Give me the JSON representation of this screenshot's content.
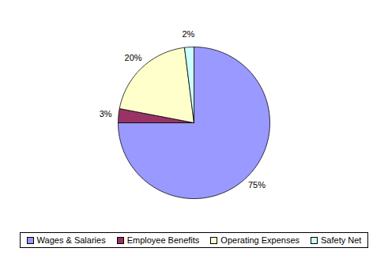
{
  "chart_data": {
    "type": "pie",
    "categories": [
      "Wages & Salaries",
      "Employee Benefits",
      "Operating Expenses",
      "Safety Net"
    ],
    "values": [
      75,
      3,
      20,
      2
    ],
    "value_labels": [
      "75%",
      "3%",
      "20%",
      "2%"
    ],
    "colors": [
      "#9999ff",
      "#993366",
      "#ffffcc",
      "#ccffff"
    ],
    "data_labels": true,
    "legend": "bottom"
  }
}
